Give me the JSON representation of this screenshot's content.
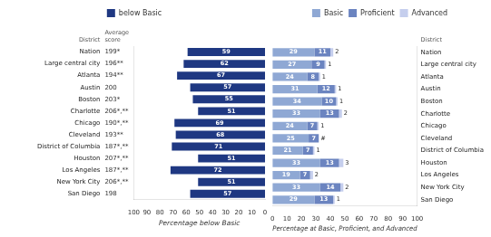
{
  "chart_data": [
    {
      "type": "bar",
      "orientation": "horizontal",
      "x_label": "Percentage below Basic",
      "categories": [
        "Nation",
        "Large central city",
        "Atlanta",
        "Austin",
        "Boston",
        "Charlotte",
        "Chicago",
        "Cleveland",
        "District of Columbia",
        "Houston",
        "Los Angeles",
        "New York City",
        "San Diego"
      ],
      "category_header": "District",
      "score_header": "Average\nscore",
      "scores": [
        "199*",
        "196**",
        "194**",
        "200",
        "203*",
        "206*,**",
        "190*,**",
        "193**",
        "187*,**",
        "207*,**",
        "187*,**",
        "206*,**",
        "198"
      ],
      "series": [
        {
          "name": "below Basic",
          "color": "#1F3882",
          "values": [
            59,
            62,
            67,
            57,
            55,
            51,
            69,
            68,
            71,
            51,
            72,
            51,
            57
          ]
        }
      ],
      "xlim": [
        100,
        0
      ],
      "xticks": [
        0,
        10,
        20,
        30,
        40,
        50,
        60,
        70,
        80,
        90,
        100
      ],
      "data_labels": true,
      "grid": false,
      "legend": "top"
    },
    {
      "type": "bar",
      "orientation": "horizontal",
      "stacked": true,
      "x_label": "Percentage at Basic, Proficient, and Advanced",
      "categories": [
        "Nation",
        "Large central city",
        "Atlanta",
        "Austin",
        "Boston",
        "Charlotte",
        "Chicago",
        "Cleveland",
        "District of Columbia",
        "Houston",
        "Los Angeles",
        "New York City",
        "San Diego"
      ],
      "category_header": "District",
      "series": [
        {
          "name": "Basic",
          "color": "#8FA8D4",
          "values": [
            29,
            27,
            24,
            31,
            34,
            33,
            24,
            25,
            21,
            33,
            19,
            33,
            29
          ]
        },
        {
          "name": "Proficient",
          "color": "#6B84C0",
          "values": [
            11,
            9,
            8,
            12,
            10,
            13,
            7,
            7,
            7,
            13,
            7,
            14,
            13
          ]
        },
        {
          "name": "Advanced",
          "color": "#C5CEED",
          "values": [
            2,
            1,
            1,
            1,
            1,
            2,
            1,
            0,
            1,
            3,
            2,
            2,
            1
          ],
          "value_labels": [
            "2",
            "1",
            "1",
            "1",
            "1",
            "2",
            "1",
            "#",
            "1",
            "3",
            "2",
            "2",
            "1"
          ]
        }
      ],
      "xlim": [
        0,
        100
      ],
      "xticks": [
        0,
        10,
        20,
        30,
        40,
        50,
        60,
        70,
        80,
        90,
        100
      ],
      "data_labels": true,
      "grid": false,
      "legend": "top"
    }
  ]
}
